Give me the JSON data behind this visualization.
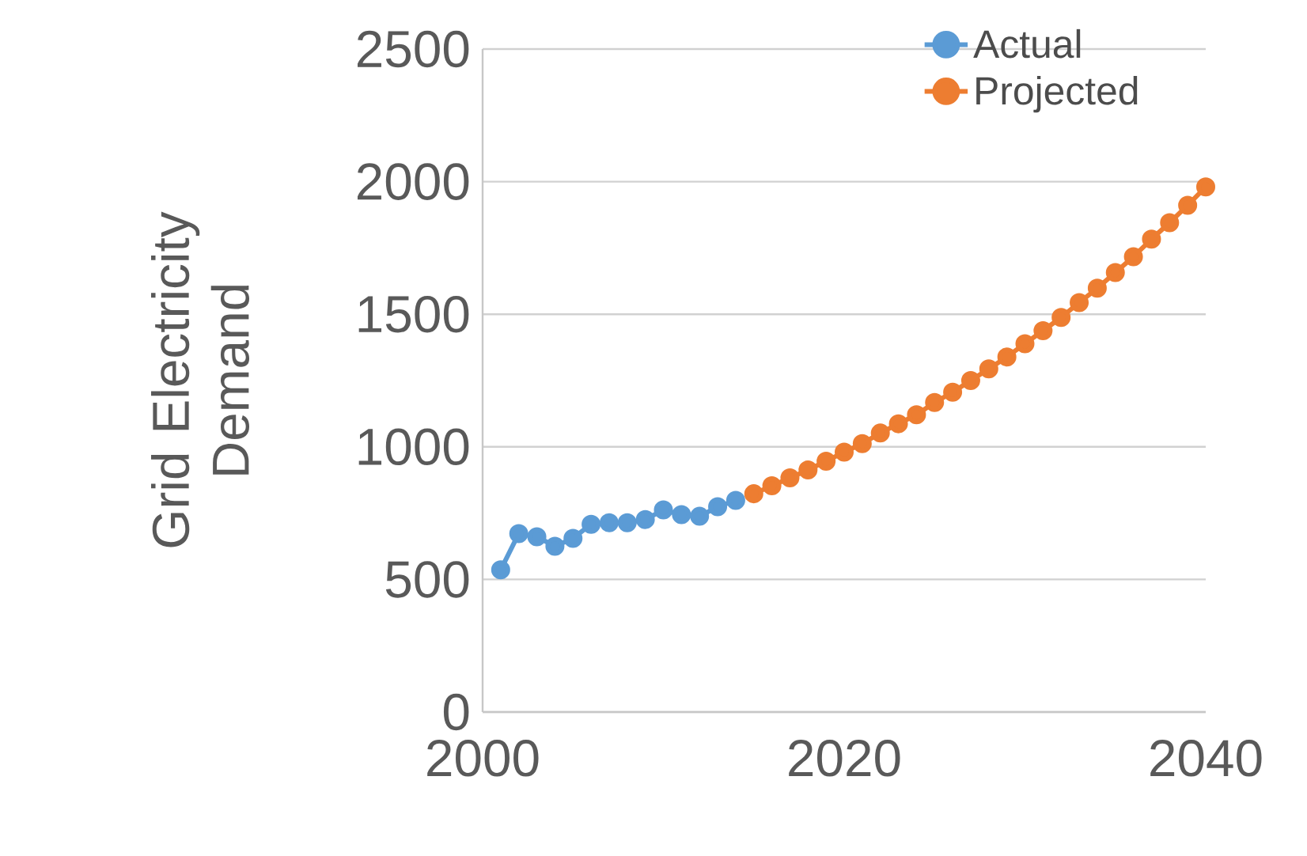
{
  "chart_data": {
    "type": "line",
    "ylabel": "Grid Electricity Demand",
    "xlim": [
      2000,
      2040
    ],
    "xticks": [
      2000,
      2020,
      2040
    ],
    "ylim": [
      0,
      2500
    ],
    "yticks": [
      0,
      500,
      1000,
      1500,
      2000,
      2500
    ],
    "grid": "y",
    "legend": "top right",
    "marker": "circle",
    "line_style": "solid",
    "series": [
      {
        "name": "Actual",
        "color": "#5b9bd5",
        "x": [
          2001,
          2002,
          2003,
          2004,
          2005,
          2006,
          2007,
          2008,
          2009,
          2010,
          2011,
          2012,
          2013,
          2014
        ],
        "values": [
          536,
          673,
          661,
          625,
          655,
          708,
          714,
          714,
          726,
          762,
          744,
          738,
          774,
          798
        ]
      },
      {
        "name": "Projected",
        "color": "#ed7d31",
        "x": [
          2015,
          2016,
          2017,
          2018,
          2019,
          2020,
          2021,
          2022,
          2023,
          2024,
          2025,
          2026,
          2027,
          2028,
          2029,
          2030,
          2031,
          2032,
          2033,
          2034,
          2035,
          2036,
          2037,
          2038,
          2039,
          2040
        ],
        "values": [
          823,
          853,
          883,
          913,
          946,
          980,
          1012,
          1052,
          1087,
          1121,
          1167,
          1206,
          1250,
          1294,
          1339,
          1389,
          1438,
          1488,
          1544,
          1598,
          1657,
          1717,
          1783,
          1845,
          1911,
          1980
        ]
      }
    ]
  }
}
